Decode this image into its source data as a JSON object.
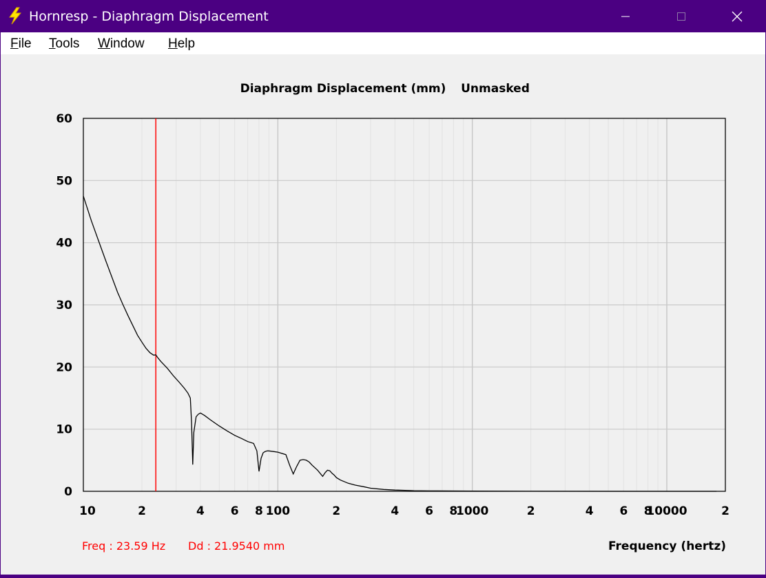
{
  "window": {
    "title": "Hornresp - Diaphragm Displacement",
    "controls": [
      "minimize",
      "maximize",
      "close"
    ]
  },
  "menu": [
    {
      "label": "File",
      "accel": "F",
      "rest": "ile"
    },
    {
      "label": "Tools",
      "accel": "T",
      "rest": "ools"
    },
    {
      "label": "Window",
      "accel": "W",
      "rest": "indow"
    },
    {
      "label": "Help",
      "accel": "H",
      "rest": "elp"
    }
  ],
  "colors": {
    "titlebar": "#4b0082",
    "trace": "#000000",
    "cursor": "#ff0000",
    "grid": "#c8c8c8",
    "grid_minor": "#e2e2e2",
    "readout": "#ff0000"
  },
  "readout": {
    "freq": "Freq : 23.59 Hz",
    "dd": "Dd : 21.9540 mm"
  },
  "chart_data": {
    "type": "line",
    "title": "Diaphragm Displacement (mm)",
    "mask_status": "Unmasked",
    "xlabel": "Frequency (hertz)",
    "ylabel": "",
    "x_scale": "log",
    "xlim": [
      10,
      20000
    ],
    "ylim": [
      0,
      60
    ],
    "y_ticks": [
      "0",
      "10",
      "20",
      "30",
      "40",
      "50",
      "60"
    ],
    "x_tick_labels": [
      {
        "value": 10,
        "label": "10"
      },
      {
        "value": 20,
        "label": "2"
      },
      {
        "value": 40,
        "label": "4"
      },
      {
        "value": 60,
        "label": "6"
      },
      {
        "value": 80,
        "label": "8"
      },
      {
        "value": 100,
        "label": "100"
      },
      {
        "value": 200,
        "label": "2"
      },
      {
        "value": 400,
        "label": "4"
      },
      {
        "value": 600,
        "label": "6"
      },
      {
        "value": 800,
        "label": "8"
      },
      {
        "value": 1000,
        "label": "1000"
      },
      {
        "value": 2000,
        "label": "2"
      },
      {
        "value": 4000,
        "label": "4"
      },
      {
        "value": 6000,
        "label": "6"
      },
      {
        "value": 8000,
        "label": "8"
      },
      {
        "value": 10000,
        "label": "10000"
      },
      {
        "value": 20000,
        "label": "2"
      }
    ],
    "grid": true,
    "cursor_x": 23.59,
    "series": [
      {
        "x": [
          10,
          11,
          12,
          13,
          14,
          15,
          16,
          17,
          18,
          19,
          20,
          21,
          22,
          23,
          23.59,
          24,
          25,
          27,
          29,
          31,
          33,
          34.5,
          35.5,
          36,
          36.5,
          37,
          38,
          39,
          40,
          42,
          45,
          50,
          55,
          60,
          65,
          70,
          75,
          78,
          80,
          82,
          84,
          86,
          88,
          90,
          95,
          100,
          110,
          115,
          120,
          125,
          130,
          135,
          140,
          145,
          150,
          160,
          170,
          175,
          180,
          185,
          190,
          195,
          200,
          210,
          230,
          250,
          280,
          300,
          350,
          400,
          450,
          500,
          600,
          800,
          1000,
          2000,
          5000,
          10000,
          18000
        ],
        "y": [
          47.5,
          43.5,
          40.2,
          37.2,
          34.5,
          32.0,
          30.0,
          28.2,
          26.6,
          25.1,
          24.0,
          23.0,
          22.3,
          21.9,
          21.95,
          21.6,
          20.9,
          19.8,
          18.6,
          17.6,
          16.6,
          15.8,
          15.0,
          11.0,
          4.3,
          9.5,
          12.0,
          12.4,
          12.6,
          12.2,
          11.5,
          10.5,
          9.7,
          9.0,
          8.5,
          8.0,
          7.7,
          6.5,
          3.2,
          5.3,
          6.2,
          6.4,
          6.5,
          6.5,
          6.4,
          6.3,
          5.9,
          4.2,
          2.8,
          4.0,
          5.0,
          5.1,
          5.0,
          4.7,
          4.2,
          3.4,
          2.4,
          3.0,
          3.4,
          3.3,
          2.9,
          2.6,
          2.2,
          1.8,
          1.3,
          1.0,
          0.7,
          0.5,
          0.3,
          0.2,
          0.15,
          0.1,
          0.07,
          0.05,
          0.03,
          0.01,
          0.0,
          0.0,
          0.0
        ]
      }
    ]
  }
}
